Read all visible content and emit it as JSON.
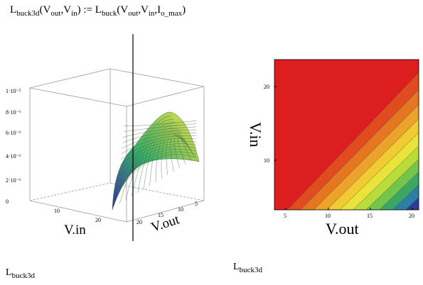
{
  "formula": {
    "lhs_name": "L",
    "lhs_sub": "buck3d",
    "lhs_arg1": "V",
    "lhs_arg1_sub": "out",
    "sep1": ",",
    "lhs_arg2": "V",
    "lhs_arg2_sub": "in",
    "assign": ":=",
    "rhs_name": "L",
    "rhs_sub": "buck",
    "rhs_arg1": "V",
    "rhs_arg1_sub": "out",
    "sep2": ",",
    "rhs_arg2": "V",
    "rhs_arg2_sub": "in",
    "sep3": ",",
    "rhs_arg3": "I",
    "rhs_arg3_sub": "o_max"
  },
  "plot3d": {
    "z_ticks": [
      "0",
      "2·10⁻⁶",
      "4·10⁻⁶",
      "6·10⁻⁶",
      "8·10⁻⁶",
      "1·10⁻⁵"
    ],
    "vin_ticks": [
      "10",
      "20"
    ],
    "vout_ticks": [
      "20",
      "15",
      "10",
      "5"
    ],
    "vin_label": "V.in",
    "vout_label": "V.out",
    "surface_color_low": "#3a2fa0",
    "surface_color_mid": "#39b06a",
    "surface_color_high": "#f3e24a"
  },
  "contour": {
    "x_ticks": [
      "5",
      "10",
      "15",
      "20"
    ],
    "y_ticks": [
      "10",
      "20"
    ],
    "x_label": "V.out",
    "y_label": "V.in",
    "band_colors": [
      "#dc1e1e",
      "#e04b20",
      "#e67722",
      "#eca32a",
      "#f0cb32",
      "#e8e43a",
      "#b9dc3c",
      "#74c54a",
      "#3aa864",
      "#2e7fa8",
      "#2e3c98"
    ]
  },
  "captions": {
    "left_name": "L",
    "left_sub": "buck3d",
    "right_name": "L",
    "right_sub": "buck3d"
  }
}
